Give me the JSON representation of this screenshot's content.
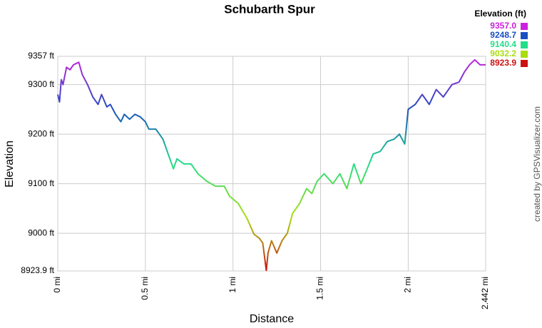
{
  "chart_data": {
    "type": "line",
    "title": "Schubarth Spur",
    "x_label": "Distance",
    "y_label": "Elevation",
    "credit": "created by GPSVisualizer.com",
    "legend_title": "Elevation (ft)",
    "color_scale": [
      {
        "value": 9357.0,
        "label": "9357.0",
        "color": "#cc22dd"
      },
      {
        "value": 9248.7,
        "label": "9248.7",
        "color": "#1a4fc0"
      },
      {
        "value": 9140.4,
        "label": "9140.4",
        "color": "#22dd88"
      },
      {
        "value": 9032.2,
        "label": "9032.2",
        "color": "#aadd11"
      },
      {
        "value": 8923.9,
        "label": "8923.9",
        "color": "#cc1111"
      }
    ],
    "x": [
      0,
      0.01,
      0.02,
      0.03,
      0.05,
      0.07,
      0.09,
      0.12,
      0.14,
      0.17,
      0.2,
      0.23,
      0.25,
      0.28,
      0.3,
      0.33,
      0.36,
      0.38,
      0.41,
      0.44,
      0.47,
      0.5,
      0.52,
      0.56,
      0.6,
      0.63,
      0.66,
      0.68,
      0.72,
      0.76,
      0.8,
      0.85,
      0.9,
      0.95,
      0.98,
      1.03,
      1.08,
      1.12,
      1.15,
      1.17,
      1.19,
      1.2,
      1.22,
      1.25,
      1.28,
      1.31,
      1.34,
      1.38,
      1.42,
      1.45,
      1.48,
      1.52,
      1.57,
      1.61,
      1.65,
      1.69,
      1.73,
      1.76,
      1.8,
      1.84,
      1.88,
      1.92,
      1.95,
      1.98,
      2.0,
      2.04,
      2.08,
      2.12,
      2.16,
      2.2,
      2.25,
      2.29,
      2.32,
      2.35,
      2.38,
      2.41,
      2.442
    ],
    "series": [
      {
        "values": [
          9280,
          9265,
          9310,
          9300,
          9335,
          9330,
          9340,
          9345,
          9320,
          9300,
          9275,
          9260,
          9280,
          9255,
          9260,
          9240,
          9225,
          9240,
          9230,
          9240,
          9235,
          9225,
          9210,
          9210,
          9190,
          9160,
          9130,
          9150,
          9140,
          9140,
          9120,
          9105,
          9095,
          9095,
          9075,
          9060,
          9030,
          8998,
          8990,
          8980,
          8925,
          8960,
          8985,
          8960,
          8985,
          9000,
          9040,
          9060,
          9090,
          9080,
          9105,
          9120,
          9100,
          9120,
          9090,
          9140,
          9100,
          9125,
          9160,
          9165,
          9185,
          9190,
          9200,
          9180,
          9250,
          9260,
          9280,
          9260,
          9290,
          9275,
          9300,
          9305,
          9325,
          9340,
          9350,
          9340,
          9340
        ]
      }
    ],
    "xlim": [
      0,
      2.442
    ],
    "ylim": [
      8923.9,
      9357
    ],
    "xticks": [
      {
        "value": 0,
        "label": "0 mi"
      },
      {
        "value": 0.5,
        "label": "0.5 mi"
      },
      {
        "value": 1,
        "label": "1 mi"
      },
      {
        "value": 1.5,
        "label": "1.5 mi"
      },
      {
        "value": 2,
        "label": "2 mi"
      },
      {
        "value": 2.442,
        "label": "2.442 mi"
      }
    ],
    "yticks": [
      {
        "value": 8923.9,
        "label": "8923.9 ft"
      },
      {
        "value": 9000,
        "label": "9000 ft"
      },
      {
        "value": 9100,
        "label": "9100 ft"
      },
      {
        "value": 9200,
        "label": "9200 ft"
      },
      {
        "value": 9300,
        "label": "9300 ft"
      },
      {
        "value": 9357,
        "label": "9357 ft"
      }
    ],
    "grid": true
  }
}
